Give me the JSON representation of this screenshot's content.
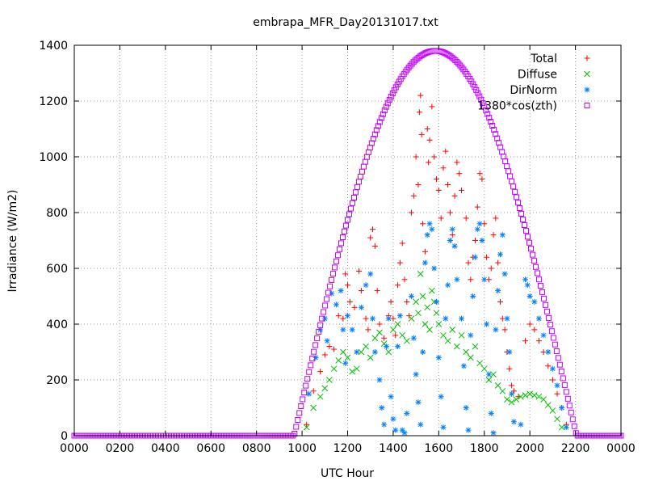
{
  "chart_data": {
    "type": "scatter",
    "title": "embrapa_MFR_Day20131017.txt",
    "xlabel": "UTC Hour",
    "ylabel": "Irradiance (W/m2)",
    "xlim": [
      0,
      24
    ],
    "ylim": [
      0,
      1400
    ],
    "grid": true,
    "legend_position": "top-right",
    "x_ticks": [
      {
        "value": 0,
        "label": "0000"
      },
      {
        "value": 2,
        "label": "0200"
      },
      {
        "value": 4,
        "label": "0400"
      },
      {
        "value": 6,
        "label": "0600"
      },
      {
        "value": 8,
        "label": "0800"
      },
      {
        "value": 10,
        "label": "1000"
      },
      {
        "value": 12,
        "label": "1200"
      },
      {
        "value": 14,
        "label": "1400"
      },
      {
        "value": 16,
        "label": "1600"
      },
      {
        "value": 18,
        "label": "1800"
      },
      {
        "value": 20,
        "label": "2000"
      },
      {
        "value": 22,
        "label": "2200"
      },
      {
        "value": 24,
        "label": "0000"
      }
    ],
    "y_ticks": [
      0,
      200,
      400,
      600,
      800,
      1000,
      1200,
      1400
    ],
    "series": [
      {
        "name": "Total",
        "marker": "plus",
        "color": "#ff0000",
        "points": [
          [
            10.2,
            40
          ],
          [
            10.5,
            160
          ],
          [
            10.8,
            230
          ],
          [
            11.0,
            290
          ],
          [
            11.2,
            320
          ],
          [
            11.4,
            310
          ],
          [
            11.6,
            430
          ],
          [
            11.8,
            420
          ],
          [
            11.9,
            580
          ],
          [
            12.0,
            540
          ],
          [
            12.1,
            480
          ],
          [
            12.3,
            460
          ],
          [
            12.5,
            590
          ],
          [
            12.6,
            520
          ],
          [
            12.8,
            420
          ],
          [
            12.9,
            380
          ],
          [
            13.0,
            710
          ],
          [
            13.1,
            740
          ],
          [
            13.2,
            680
          ],
          [
            13.3,
            520
          ],
          [
            13.4,
            400
          ],
          [
            13.6,
            350
          ],
          [
            13.8,
            430
          ],
          [
            13.9,
            480
          ],
          [
            14.0,
            420
          ],
          [
            14.1,
            360
          ],
          [
            14.2,
            540
          ],
          [
            14.3,
            620
          ],
          [
            14.4,
            690
          ],
          [
            14.5,
            560
          ],
          [
            14.6,
            480
          ],
          [
            14.7,
            430
          ],
          [
            14.8,
            800
          ],
          [
            14.9,
            860
          ],
          [
            15.0,
            1000
          ],
          [
            15.1,
            900
          ],
          [
            15.15,
            1160
          ],
          [
            15.2,
            1220
          ],
          [
            15.25,
            1080
          ],
          [
            15.3,
            760
          ],
          [
            15.4,
            660
          ],
          [
            15.5,
            1100
          ],
          [
            15.55,
            980
          ],
          [
            15.6,
            1060
          ],
          [
            15.7,
            1180
          ],
          [
            15.8,
            1000
          ],
          [
            15.9,
            920
          ],
          [
            16.0,
            880
          ],
          [
            16.1,
            780
          ],
          [
            16.2,
            960
          ],
          [
            16.3,
            1020
          ],
          [
            16.4,
            900
          ],
          [
            16.5,
            800
          ],
          [
            16.6,
            720
          ],
          [
            16.7,
            860
          ],
          [
            16.8,
            980
          ],
          [
            16.9,
            940
          ],
          [
            17.0,
            880
          ],
          [
            17.2,
            780
          ],
          [
            17.3,
            620
          ],
          [
            17.4,
            560
          ],
          [
            17.5,
            640
          ],
          [
            17.6,
            700
          ],
          [
            17.7,
            820
          ],
          [
            17.8,
            940
          ],
          [
            17.9,
            920
          ],
          [
            18.0,
            760
          ],
          [
            18.1,
            640
          ],
          [
            18.2,
            560
          ],
          [
            18.3,
            600
          ],
          [
            18.4,
            720
          ],
          [
            18.5,
            780
          ],
          [
            18.6,
            620
          ],
          [
            18.7,
            480
          ],
          [
            18.8,
            420
          ],
          [
            18.9,
            380
          ],
          [
            19.0,
            300
          ],
          [
            19.1,
            240
          ],
          [
            19.2,
            180
          ],
          [
            19.3,
            160
          ],
          [
            19.5,
            140
          ],
          [
            19.8,
            340
          ],
          [
            20.0,
            400
          ],
          [
            20.2,
            380
          ],
          [
            20.4,
            340
          ],
          [
            20.6,
            300
          ],
          [
            20.8,
            250
          ],
          [
            21.0,
            200
          ],
          [
            21.2,
            150
          ],
          [
            21.4,
            100
          ],
          [
            21.6,
            40
          ]
        ]
      },
      {
        "name": "Diffuse",
        "marker": "cross",
        "color": "#00c000",
        "points": [
          [
            10.2,
            30
          ],
          [
            10.5,
            100
          ],
          [
            10.8,
            140
          ],
          [
            11.0,
            170
          ],
          [
            11.2,
            200
          ],
          [
            11.4,
            240
          ],
          [
            11.6,
            270
          ],
          [
            11.8,
            300
          ],
          [
            12.0,
            280
          ],
          [
            12.2,
            230
          ],
          [
            12.4,
            240
          ],
          [
            12.6,
            300
          ],
          [
            12.8,
            320
          ],
          [
            13.0,
            280
          ],
          [
            13.2,
            350
          ],
          [
            13.4,
            370
          ],
          [
            13.6,
            330
          ],
          [
            13.8,
            300
          ],
          [
            14.0,
            380
          ],
          [
            14.2,
            400
          ],
          [
            14.4,
            360
          ],
          [
            14.6,
            340
          ],
          [
            14.8,
            420
          ],
          [
            15.0,
            480
          ],
          [
            15.1,
            440
          ],
          [
            15.2,
            580
          ],
          [
            15.3,
            500
          ],
          [
            15.4,
            400
          ],
          [
            15.5,
            460
          ],
          [
            15.6,
            380
          ],
          [
            15.7,
            520
          ],
          [
            15.8,
            480
          ],
          [
            15.9,
            440
          ],
          [
            16.0,
            400
          ],
          [
            16.2,
            360
          ],
          [
            16.4,
            340
          ],
          [
            16.6,
            380
          ],
          [
            16.8,
            320
          ],
          [
            17.0,
            360
          ],
          [
            17.2,
            300
          ],
          [
            17.4,
            280
          ],
          [
            17.6,
            320
          ],
          [
            17.8,
            260
          ],
          [
            18.0,
            240
          ],
          [
            18.2,
            200
          ],
          [
            18.4,
            220
          ],
          [
            18.6,
            180
          ],
          [
            18.8,
            160
          ],
          [
            19.0,
            130
          ],
          [
            19.2,
            120
          ],
          [
            19.4,
            130
          ],
          [
            19.6,
            140
          ],
          [
            19.8,
            145
          ],
          [
            20.0,
            150
          ],
          [
            20.2,
            145
          ],
          [
            20.4,
            140
          ],
          [
            20.6,
            130
          ],
          [
            20.8,
            110
          ],
          [
            21.0,
            90
          ],
          [
            21.2,
            60
          ],
          [
            21.4,
            30
          ]
        ]
      },
      {
        "name": "DirNorm",
        "marker": "star",
        "color": "#0080ff",
        "points": [
          [
            10.3,
            150
          ],
          [
            10.6,
            280
          ],
          [
            10.8,
            380
          ],
          [
            11.0,
            420
          ],
          [
            11.1,
            340
          ],
          [
            11.3,
            510
          ],
          [
            11.5,
            470
          ],
          [
            11.7,
            520
          ],
          [
            11.8,
            380
          ],
          [
            11.9,
            260
          ],
          [
            12.0,
            430
          ],
          [
            12.2,
            380
          ],
          [
            12.4,
            300
          ],
          [
            12.6,
            460
          ],
          [
            12.8,
            540
          ],
          [
            13.0,
            580
          ],
          [
            13.1,
            420
          ],
          [
            13.2,
            300
          ],
          [
            13.4,
            200
          ],
          [
            13.5,
            100
          ],
          [
            13.6,
            40
          ],
          [
            13.7,
            320
          ],
          [
            13.8,
            420
          ],
          [
            13.9,
            140
          ],
          [
            14.0,
            60
          ],
          [
            14.1,
            20
          ],
          [
            14.2,
            320
          ],
          [
            14.3,
            430
          ],
          [
            14.4,
            20
          ],
          [
            14.5,
            10
          ],
          [
            14.6,
            80
          ],
          [
            14.8,
            500
          ],
          [
            14.9,
            350
          ],
          [
            15.0,
            220
          ],
          [
            15.1,
            120
          ],
          [
            15.2,
            40
          ],
          [
            15.3,
            300
          ],
          [
            15.4,
            620
          ],
          [
            15.5,
            720
          ],
          [
            15.6,
            760
          ],
          [
            15.7,
            740
          ],
          [
            15.8,
            600
          ],
          [
            15.9,
            480
          ],
          [
            16.0,
            280
          ],
          [
            16.1,
            140
          ],
          [
            16.2,
            30
          ],
          [
            16.3,
            420
          ],
          [
            16.4,
            540
          ],
          [
            16.5,
            700
          ],
          [
            16.6,
            740
          ],
          [
            16.7,
            680
          ],
          [
            16.8,
            560
          ],
          [
            17.0,
            420
          ],
          [
            17.1,
            250
          ],
          [
            17.2,
            100
          ],
          [
            17.3,
            20
          ],
          [
            17.4,
            360
          ],
          [
            17.5,
            500
          ],
          [
            17.6,
            640
          ],
          [
            17.7,
            740
          ],
          [
            17.8,
            760
          ],
          [
            17.9,
            700
          ],
          [
            18.0,
            560
          ],
          [
            18.1,
            400
          ],
          [
            18.2,
            220
          ],
          [
            18.3,
            80
          ],
          [
            18.4,
            10
          ],
          [
            18.5,
            380
          ],
          [
            18.6,
            520
          ],
          [
            18.7,
            650
          ],
          [
            18.8,
            720
          ],
          [
            18.9,
            580
          ],
          [
            19.0,
            420
          ],
          [
            19.1,
            300
          ],
          [
            19.2,
            150
          ],
          [
            19.3,
            50
          ],
          [
            19.6,
            40
          ],
          [
            19.8,
            560
          ],
          [
            19.9,
            540
          ],
          [
            20.0,
            500
          ],
          [
            20.2,
            480
          ],
          [
            20.4,
            420
          ],
          [
            20.6,
            360
          ],
          [
            20.8,
            300
          ],
          [
            21.0,
            240
          ],
          [
            21.2,
            180
          ],
          [
            21.4,
            100
          ],
          [
            21.6,
            30
          ]
        ]
      },
      {
        "name": "1380*cos(zth)",
        "marker": "square",
        "color": "#c000ff",
        "curve": {
          "amplitude": 1380,
          "peak_hour": 15.85,
          "zero_start": 9.65,
          "zero_end": 22.05
        }
      }
    ]
  }
}
